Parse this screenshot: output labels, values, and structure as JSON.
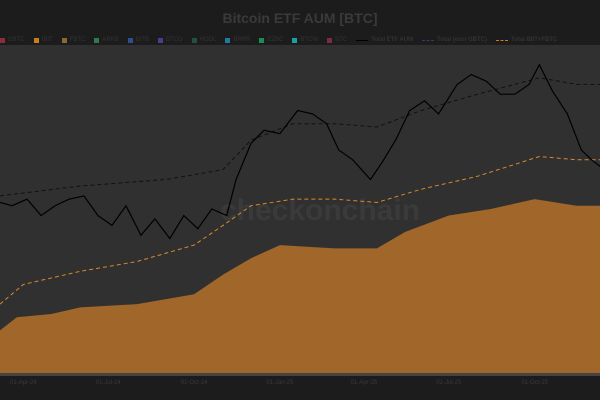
{
  "chart_data": {
    "type": "line",
    "title": "Bitcoin ETF AUM [BTC]",
    "watermark": "checkonchain",
    "x_tick_labels": [
      "01-Apr-24",
      "01-Jul-24",
      "01-Oct-24",
      "01-Jan-25",
      "01-Apr-25",
      "01-Jul-25",
      "01-Oct-25"
    ],
    "x_ticks": [
      "2024-04-01",
      "2024-07-01",
      "2024-10-01",
      "2025-01-01",
      "2025-04-01",
      "2025-07-01",
      "2025-10-01"
    ],
    "xlim": [
      "2024-03-07",
      "2025-12-10"
    ],
    "ylim": [
      0,
      100
    ],
    "y_axis_labels_shown": false,
    "grid": false,
    "legend_placement": "top",
    "legend": [
      {
        "name": "GBTC",
        "color": "#8a2e3e",
        "kind": "box"
      },
      {
        "name": "IBIT",
        "color": "#c97d1c",
        "kind": "box"
      },
      {
        "name": "FBTC",
        "color": "#8a6a32",
        "kind": "box"
      },
      {
        "name": "ARKB",
        "color": "#2e7a4e",
        "kind": "box"
      },
      {
        "name": "BITB",
        "color": "#2d4f8e",
        "kind": "box"
      },
      {
        "name": "BTCO",
        "color": "#4b3d8e",
        "kind": "box"
      },
      {
        "name": "HODL",
        "color": "#24503c",
        "kind": "box"
      },
      {
        "name": "BRRR",
        "color": "#1e7aa0",
        "kind": "box"
      },
      {
        "name": "EZBC",
        "color": "#1e8a55",
        "kind": "box"
      },
      {
        "name": "BTCW",
        "color": "#1aa0a0",
        "kind": "box"
      },
      {
        "name": "BTC",
        "color": "#7a2a48",
        "kind": "box"
      },
      {
        "name": "Total ETF AUM",
        "color": "#000000",
        "kind": "line"
      },
      {
        "name": "Total (excl GBTC)",
        "color": "#2d3f6e",
        "kind": "dash"
      },
      {
        "name": "Total IBIT+FBTC",
        "color": "#c97d1c",
        "kind": "dash"
      }
    ],
    "colors": {
      "plot_bg": "#303030",
      "page_bg": "#1c1c1c",
      "area": "#a0662a",
      "total": "#000000",
      "dashed_black": "#111111",
      "dashed_orange": "#d9892a"
    },
    "series": [
      {
        "name": "Total ETF AUM",
        "style": "solid",
        "color": "#000000",
        "points": [
          [
            "2024-03-07",
            52
          ],
          [
            "2024-03-20",
            51
          ],
          [
            "2024-04-05",
            53
          ],
          [
            "2024-04-20",
            48
          ],
          [
            "2024-05-05",
            51
          ],
          [
            "2024-05-20",
            53
          ],
          [
            "2024-06-05",
            54
          ],
          [
            "2024-06-20",
            48
          ],
          [
            "2024-07-05",
            45
          ],
          [
            "2024-07-20",
            51
          ],
          [
            "2024-08-05",
            42
          ],
          [
            "2024-08-20",
            47
          ],
          [
            "2024-09-05",
            41
          ],
          [
            "2024-09-20",
            48
          ],
          [
            "2024-10-05",
            44
          ],
          [
            "2024-10-20",
            50
          ],
          [
            "2024-11-05",
            48
          ],
          [
            "2024-11-15",
            59
          ],
          [
            "2024-12-01",
            70
          ],
          [
            "2024-12-15",
            74
          ],
          [
            "2025-01-01",
            73
          ],
          [
            "2025-01-20",
            80
          ],
          [
            "2025-02-05",
            79
          ],
          [
            "2025-02-20",
            76
          ],
          [
            "2025-03-05",
            68
          ],
          [
            "2025-03-20",
            65
          ],
          [
            "2025-04-08",
            59
          ],
          [
            "2025-04-20",
            64
          ],
          [
            "2025-05-05",
            71
          ],
          [
            "2025-05-20",
            80
          ],
          [
            "2025-06-05",
            83
          ],
          [
            "2025-06-20",
            79
          ],
          [
            "2025-07-10",
            88
          ],
          [
            "2025-07-25",
            91
          ],
          [
            "2025-08-10",
            89
          ],
          [
            "2025-08-25",
            85
          ],
          [
            "2025-09-10",
            85
          ],
          [
            "2025-09-25",
            88
          ],
          [
            "2025-10-06",
            94
          ],
          [
            "2025-10-20",
            86
          ],
          [
            "2025-11-05",
            79
          ],
          [
            "2025-11-20",
            68
          ],
          [
            "2025-12-01",
            65
          ],
          [
            "2025-12-10",
            63
          ]
        ]
      },
      {
        "name": "Total (excl GBTC)",
        "style": "dashed",
        "color": "#111111",
        "points": [
          [
            "2024-03-07",
            54
          ],
          [
            "2024-06-01",
            57
          ],
          [
            "2024-09-01",
            59
          ],
          [
            "2024-11-01",
            62
          ],
          [
            "2024-12-01",
            71
          ],
          [
            "2025-01-15",
            76
          ],
          [
            "2025-03-01",
            76
          ],
          [
            "2025-04-15",
            75
          ],
          [
            "2025-06-01",
            80
          ],
          [
            "2025-08-01",
            85
          ],
          [
            "2025-10-06",
            90
          ],
          [
            "2025-11-15",
            88
          ],
          [
            "2025-12-10",
            88
          ]
        ]
      },
      {
        "name": "Total IBIT+FBTC",
        "style": "dashed",
        "color": "#d9892a",
        "points": [
          [
            "2024-03-07",
            21
          ],
          [
            "2024-04-01",
            27
          ],
          [
            "2024-06-01",
            31
          ],
          [
            "2024-08-01",
            34
          ],
          [
            "2024-10-01",
            39
          ],
          [
            "2024-11-01",
            45
          ],
          [
            "2024-12-01",
            51
          ],
          [
            "2025-01-15",
            53
          ],
          [
            "2025-03-01",
            53
          ],
          [
            "2025-04-15",
            52
          ],
          [
            "2025-06-01",
            56
          ],
          [
            "2025-08-01",
            60
          ],
          [
            "2025-10-06",
            66
          ],
          [
            "2025-11-15",
            65
          ],
          [
            "2025-12-10",
            65
          ]
        ]
      },
      {
        "name": "IBIT",
        "style": "area",
        "color": "#a0662a",
        "points": [
          [
            "2024-03-07",
            13
          ],
          [
            "2024-03-25",
            17
          ],
          [
            "2024-05-01",
            18
          ],
          [
            "2024-06-01",
            20
          ],
          [
            "2024-08-01",
            21
          ],
          [
            "2024-10-01",
            24
          ],
          [
            "2024-11-01",
            30
          ],
          [
            "2024-12-01",
            35
          ],
          [
            "2025-01-01",
            39
          ],
          [
            "2025-03-01",
            38
          ],
          [
            "2025-04-15",
            38
          ],
          [
            "2025-05-15",
            43
          ],
          [
            "2025-07-01",
            48
          ],
          [
            "2025-08-15",
            50
          ],
          [
            "2025-10-01",
            53
          ],
          [
            "2025-11-15",
            51
          ],
          [
            "2025-12-10",
            51
          ]
        ]
      }
    ]
  }
}
